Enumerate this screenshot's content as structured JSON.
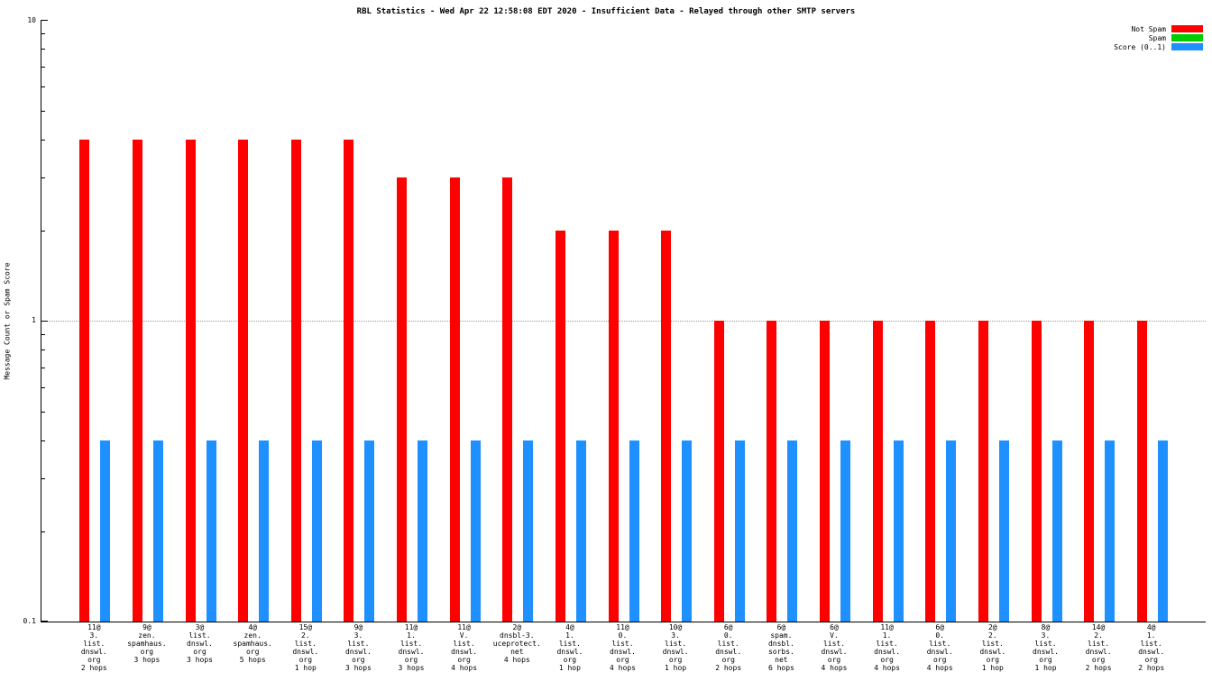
{
  "chart_data": {
    "type": "bar",
    "title": "RBL Statistics - Wed Apr 22 12:58:08 EDT 2020 - Insufficient Data - Relayed through other SMTP servers",
    "xlabel": "",
    "ylabel": "Message Count or Spam Score",
    "yscale": "log",
    "ylim": [
      0.1,
      10
    ],
    "ytick_labels": [
      "10",
      "1",
      "0.1"
    ],
    "grid_values": [
      1
    ],
    "legend_position": "top-right",
    "categories": [
      [
        "11@",
        "3.",
        "list.",
        "dnswl.",
        "org",
        "2 hops"
      ],
      [
        "9@",
        "zen.",
        "spamhaus.",
        "org",
        "3 hops"
      ],
      [
        "3@",
        "list.",
        "dnswl.",
        "org",
        "3 hops"
      ],
      [
        "4@",
        "zen.",
        "spamhaus.",
        "org",
        "5 hops"
      ],
      [
        "15@",
        "2.",
        "list.",
        "dnswl.",
        "org",
        "1 hop"
      ],
      [
        "9@",
        "3.",
        "list.",
        "dnswl.",
        "org",
        "3 hops"
      ],
      [
        "11@",
        "1.",
        "list.",
        "dnswl.",
        "org",
        "3 hops"
      ],
      [
        "11@",
        "V.",
        "list.",
        "dnswl.",
        "org",
        "4 hops"
      ],
      [
        "2@",
        "dnsbl-3.",
        "uceprotect.",
        "net",
        "4 hops"
      ],
      [
        "4@",
        "1.",
        "list.",
        "dnswl.",
        "org",
        "1 hop"
      ],
      [
        "11@",
        "0.",
        "list.",
        "dnswl.",
        "org",
        "4 hops"
      ],
      [
        "10@",
        "3.",
        "list.",
        "dnswl.",
        "org",
        "1 hop"
      ],
      [
        "6@",
        "0.",
        "list.",
        "dnswl.",
        "org",
        "2 hops"
      ],
      [
        "6@",
        "spam.",
        "dnsbl.",
        "sorbs.",
        "net",
        "6 hops"
      ],
      [
        "6@",
        "V.",
        "list.",
        "dnswl.",
        "org",
        "4 hops"
      ],
      [
        "11@",
        "1.",
        "list.",
        "dnswl.",
        "org",
        "4 hops"
      ],
      [
        "6@",
        "0.",
        "list.",
        "dnswl.",
        "org",
        "4 hops"
      ],
      [
        "2@",
        "2.",
        "list.",
        "dnswl.",
        "org",
        "1 hop"
      ],
      [
        "8@",
        "3.",
        "list.",
        "dnswl.",
        "org",
        "1 hop"
      ],
      [
        "14@",
        "2.",
        "list.",
        "dnswl.",
        "org",
        "2 hops"
      ],
      [
        "4@",
        "1.",
        "list.",
        "dnswl.",
        "org",
        "2 hops"
      ]
    ],
    "series": [
      {
        "name": "Not Spam",
        "color": "#ff0000",
        "values": [
          4,
          4,
          4,
          4,
          4,
          4,
          3,
          3,
          3,
          2,
          2,
          2,
          1,
          1,
          1,
          1,
          1,
          1,
          1,
          1,
          1
        ]
      },
      {
        "name": "Spam",
        "color": "#00cc00",
        "values": [
          0,
          0,
          0,
          0,
          0,
          0,
          0,
          0,
          0,
          0,
          0,
          0,
          0,
          0,
          0,
          0,
          0,
          0,
          0,
          0,
          0
        ]
      },
      {
        "name": "Score (0..1)",
        "color": "#1e90ff",
        "values": [
          0.4,
          0.4,
          0.4,
          0.4,
          0.4,
          0.4,
          0.4,
          0.4,
          0.4,
          0.4,
          0.4,
          0.4,
          0.4,
          0.4,
          0.4,
          0.4,
          0.4,
          0.4,
          0.4,
          0.4,
          0.4
        ]
      }
    ]
  }
}
